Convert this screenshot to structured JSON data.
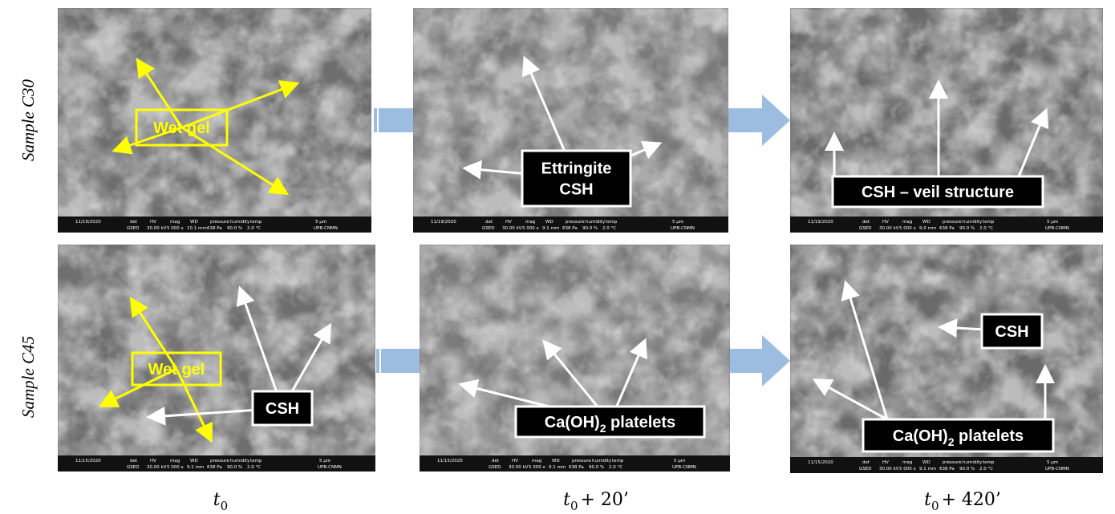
{
  "row_labels": [
    "Sample C30",
    "Sample C45"
  ],
  "column_labels": [
    {
      "base": "t",
      "sub": "0",
      "suffix": ""
    },
    {
      "base": "t",
      "sub": "0",
      "suffix": "+ 20’"
    },
    {
      "base": "t",
      "sub": "0",
      "suffix": "+ 420’"
    }
  ],
  "info_headers": [
    "det",
    "HV",
    "mag",
    "WD",
    "pressure",
    "humidity",
    "temp"
  ],
  "rows": [
    [
      {
        "info": {
          "date": "11/19/2020",
          "det": "GSED",
          "hv": "30.00 kV",
          "mag": "5 000 x",
          "wd": "10.1 mm",
          "pressure": "638 Pa",
          "humidity": "90.0 %",
          "temp": "2.0 °C",
          "scale": "5 μm",
          "lab": "UPB-CNMN"
        },
        "labels": [
          {
            "lines": [
              {
                "text": "Wet gel"
              }
            ]
          }
        ]
      },
      {
        "info": {
          "date": "11/19/2020",
          "det": "GSED",
          "hv": "30.00 kV",
          "mag": "5 000 x",
          "wd": "9.1 mm",
          "pressure": "638 Pa",
          "humidity": "90.0 %",
          "temp": "2.0 °C",
          "scale": "5 μm",
          "lab": "UPB-CNMN"
        },
        "labels": [
          {
            "lines": [
              {
                "text": "Ettringite"
              },
              {
                "text": "CSH"
              }
            ]
          }
        ]
      },
      {
        "info": {
          "date": "11/19/2020",
          "det": "GSED",
          "hv": "30.00 kV",
          "mag": "5 000 x",
          "wd": "9.0 mm",
          "pressure": "638 Pa",
          "humidity": "90.0 %",
          "temp": "2.0 °C",
          "scale": "5 μm",
          "lab": "UPB-CNMN"
        },
        "labels": [
          {
            "lines": [
              {
                "text": "CSH – veil structure"
              }
            ]
          }
        ]
      }
    ],
    [
      {
        "info": {
          "date": "11/15/2020",
          "det": "GSED",
          "hv": "30.00 kV",
          "mag": "5 000 x",
          "wd": "9.1 mm",
          "pressure": "638 Pa",
          "humidity": "90.0 %",
          "temp": "2.0 °C",
          "scale": "5 μm",
          "lab": "UPB-CNMN"
        },
        "labels": [
          {
            "lines": [
              {
                "text": "Wet gel"
              }
            ]
          },
          {
            "lines": [
              {
                "text": "CSH"
              }
            ]
          }
        ]
      },
      {
        "info": {
          "date": "11/15/2020",
          "det": "GSED",
          "hv": "30.00 kV",
          "mag": "5 000 x",
          "wd": "9.1 mm",
          "pressure": "638 Pa",
          "humidity": "90.0 %",
          "temp": "2.0 °C",
          "scale": "5 μm",
          "lab": "UPB-CNMN"
        },
        "labels": [
          {
            "lines": [
              {
                "text": "Ca(OH)",
                "sub": "2",
                "suffix": " platelets"
              }
            ]
          }
        ]
      },
      {
        "info": {
          "date": "11/15/2020",
          "det": "GSED",
          "hv": "30.00 kV",
          "mag": "5 000 x",
          "wd": "9.1 mm",
          "pressure": "638 Pa",
          "humidity": "90.0 %",
          "temp": "2.0 °C",
          "scale": "5 μm",
          "lab": "UPB-CNMN"
        },
        "labels": [
          {
            "lines": [
              {
                "text": "CSH"
              }
            ]
          },
          {
            "lines": [
              {
                "text": "Ca(OH)",
                "sub": "2",
                "suffix": " platelets"
              }
            ]
          }
        ]
      }
    ]
  ]
}
